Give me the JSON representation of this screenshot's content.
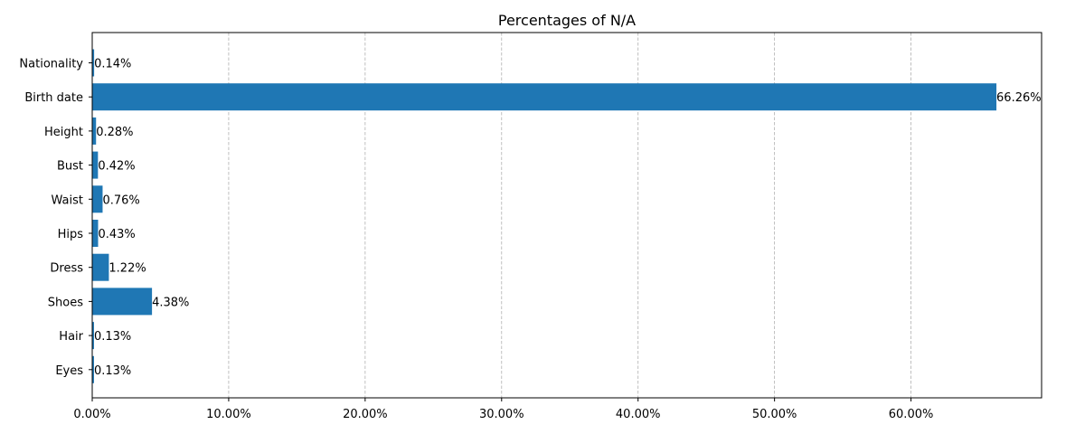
{
  "chart_data": {
    "type": "bar",
    "orientation": "horizontal",
    "title": "Percentages of N/A",
    "xlabel": "",
    "ylabel": "",
    "categories": [
      "Nationality",
      "Birth date",
      "Height",
      "Bust",
      "Waist",
      "Hips",
      "Dress",
      "Shoes",
      "Hair",
      "Eyes"
    ],
    "values": [
      0.14,
      66.26,
      0.28,
      0.42,
      0.76,
      0.43,
      1.22,
      4.38,
      0.13,
      0.13
    ],
    "value_labels": [
      "0.14%",
      "66.26%",
      "0.28%",
      "0.42%",
      "0.76%",
      "0.43%",
      "1.22%",
      "4.38%",
      "0.13%",
      "0.13%"
    ],
    "xlim": [
      0,
      69.57
    ],
    "xticks": [
      0,
      10,
      20,
      30,
      40,
      50,
      60
    ],
    "xtick_labels": [
      "0.00%",
      "10.00%",
      "20.00%",
      "30.00%",
      "40.00%",
      "50.00%",
      "60.00%"
    ],
    "grid": "x, dashed",
    "legend": "none",
    "bar_color": "#1f77b4",
    "grid_color": "#b0b0b0"
  }
}
